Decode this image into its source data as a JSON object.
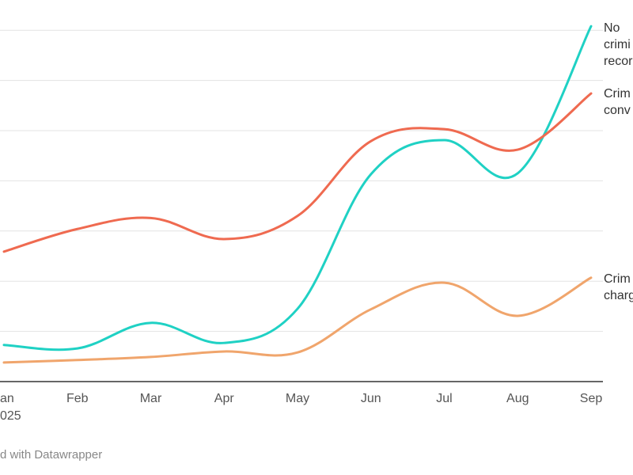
{
  "chart_data": {
    "type": "line",
    "categories": [
      "Jan",
      "Feb",
      "Mar",
      "Apr",
      "May",
      "Jun",
      "Jul",
      "Aug",
      "Sep"
    ],
    "year_label": "025",
    "x_tick_labels": [
      "an",
      "Feb",
      "Mar",
      "Apr",
      "May",
      "Jun",
      "Jul",
      "Aug",
      "Sep"
    ],
    "ylim": [
      0,
      7
    ],
    "grid": true,
    "series": [
      {
        "label_lines": [
          "No",
          "crimi",
          "recor"
        ],
        "color": "#1fd1c4",
        "values": [
          0.73,
          0.66,
          1.17,
          0.77,
          1.45,
          4.13,
          4.81,
          4.15,
          7.08
        ]
      },
      {
        "label_lines": [
          "Crim",
          "conv"
        ],
        "color": "#ef6a50",
        "values": [
          2.59,
          3.04,
          3.26,
          2.84,
          3.3,
          4.79,
          5.03,
          4.62,
          5.74
        ]
      },
      {
        "label_lines": [
          "Crim",
          "charg"
        ],
        "color": "#f0a56c",
        "values": [
          0.38,
          0.43,
          0.49,
          0.6,
          0.58,
          1.44,
          1.97,
          1.31,
          2.07
        ]
      }
    ]
  },
  "footer": {
    "credit": "d with Datawrapper"
  }
}
